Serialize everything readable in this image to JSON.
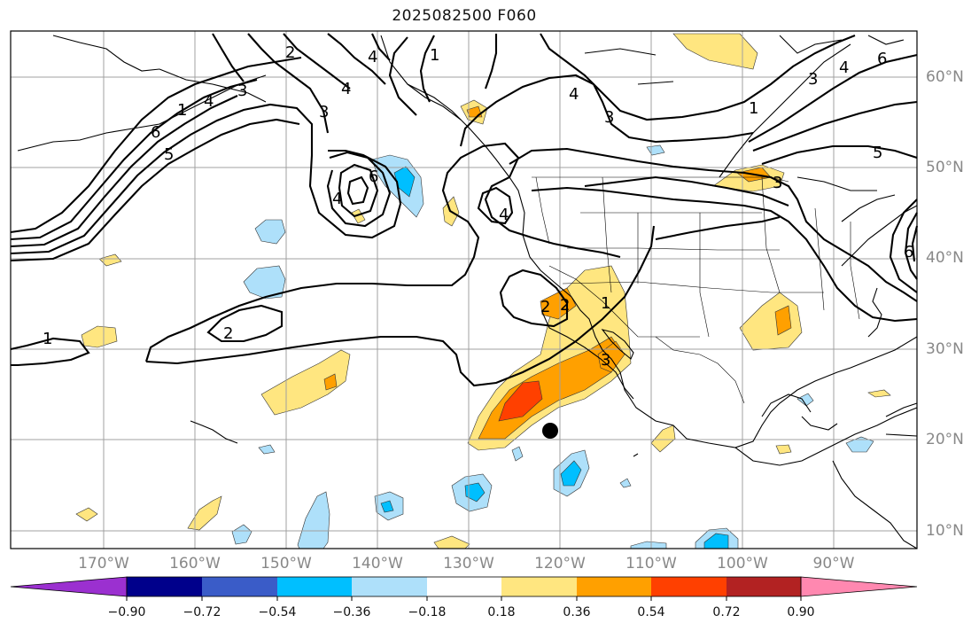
{
  "title": "2025082500 F060",
  "latitude_labels": [
    "60°N",
    "50°N",
    "40°N",
    "30°N",
    "20°N",
    "10°N"
  ],
  "longitude_labels": [
    "170°W",
    "160°W",
    "150°W",
    "140°W",
    "130°W",
    "120°W",
    "110°W",
    "100°W",
    "90°W"
  ],
  "contour_labels": [
    "1",
    "2",
    "3",
    "4",
    "5",
    "6"
  ],
  "colorbar": {
    "tick_labels": [
      "−0.90",
      "−0.72",
      "−0.54",
      "−0.36",
      "−0.18",
      "0.18",
      "0.36",
      "0.54",
      "0.72",
      "0.90"
    ],
    "colors": [
      "#9b30d0",
      "#00008b",
      "#3a5cc8",
      "#00bfff",
      "#aee0fa",
      "#ffffff",
      "#ffe680",
      "#ffa000",
      "#ff4000",
      "#b22222",
      "#ff88b0"
    ]
  },
  "marker": {
    "label": "storm-center"
  }
}
